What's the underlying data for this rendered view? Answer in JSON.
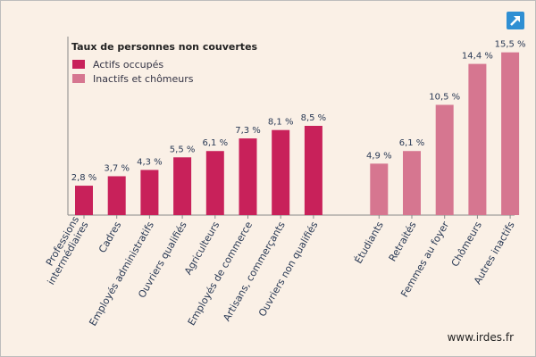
{
  "chart_data": {
    "type": "bar",
    "legend_title": "Taux de personnes non couvertes",
    "legend_placement": "top-left",
    "grid": false,
    "ylim": [
      0,
      17
    ],
    "series": [
      {
        "name": "Actifs occupés",
        "color": "#c8215a",
        "categories": [
          "Professions intermédiaires",
          "Cadres",
          "Employés administratifs",
          "Ouvriers qualifiés",
          "Agriculteurs",
          "Employés de commerce",
          "Artisans, commerçants",
          "Ouvriers non qualifiés"
        ],
        "category_lines": [
          [
            "Professions",
            "intermédiaires"
          ],
          [
            "Cadres"
          ],
          [
            "Employés administratifs"
          ],
          [
            "Ouvriers qualifiés"
          ],
          [
            "Agriculteurs"
          ],
          [
            "Employés de commerce"
          ],
          [
            "Artisans, commerçants"
          ],
          [
            "Ouvriers non qualifiés"
          ]
        ],
        "values": [
          2.8,
          3.7,
          4.3,
          5.5,
          6.1,
          7.3,
          8.1,
          8.5
        ],
        "value_labels": [
          "2,8 %",
          "3,7 %",
          "4,3 %",
          "5,5 %",
          "6,1 %",
          "7,3 %",
          "8,1 %",
          "8,5 %"
        ]
      },
      {
        "name": "Inactifs et chômeurs",
        "color": "#d67690",
        "categories": [
          "Étudiants",
          "Retraités",
          "Femmes au foyer",
          "Chômeurs",
          "Autres inactifs"
        ],
        "category_lines": [
          [
            "Étudiants"
          ],
          [
            "Retraités"
          ],
          [
            "Femmes au foyer"
          ],
          [
            "Chômeurs"
          ],
          [
            "Autres inactifs"
          ]
        ],
        "values": [
          4.9,
          6.1,
          10.5,
          14.4,
          15.5
        ],
        "value_labels": [
          "4,9 %",
          "6,1 %",
          "10,5 %",
          "14,4 %",
          "15,5 %"
        ]
      }
    ]
  },
  "source": "www.irdes.fr",
  "icons": {
    "corner": "expand-arrow-icon"
  }
}
